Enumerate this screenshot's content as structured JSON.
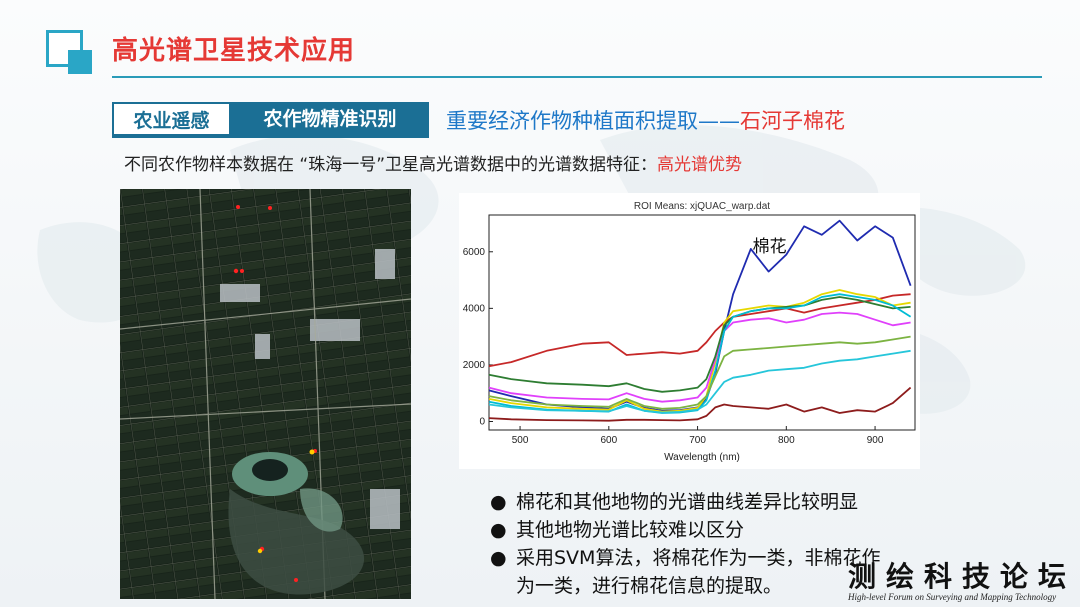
{
  "slide": {
    "title": "高光谱卫星技术应用",
    "tag_primary": "农业遥感",
    "tag_secondary": "农作物精准识别",
    "headline_main": "重要经济作物种植面积提取——",
    "headline_highlight": "石河子棉花",
    "subheading_main": "不同农作物样本数据在 “珠海一号”卫星高光谱数据中的光谱数据特征：",
    "subheading_highlight": "高光谱优势",
    "bullets": [
      "棉花和其他地物的光谱曲线差异比较明显",
      "其他地物光谱比较难以区分",
      "采用SVM算法，将棉花作为一类，非棉花作"
    ],
    "bullet_continuation": "为一类，进行棉花信息的提取。",
    "bullet_symbol": "●",
    "watermark": "测绘科技论坛",
    "watermark_sub": "High-level Forum on Surveying and Mapping Technology",
    "accent_red": "#e53935",
    "accent_blue": "#1b6f95"
  },
  "chart_data": {
    "type": "line",
    "title": "ROI Means: xjQUAC_warp.dat",
    "xlabel": "Wavelength (nm)",
    "ylabel": "",
    "annotation": "棉花",
    "xlim": [
      465,
      945
    ],
    "ylim": [
      -300,
      7300
    ],
    "x_ticks": [
      500,
      600,
      700,
      800,
      900
    ],
    "y_ticks": [
      0,
      2000,
      4000,
      6000
    ],
    "x": [
      465,
      490,
      530,
      570,
      600,
      620,
      640,
      660,
      680,
      700,
      710,
      720,
      730,
      740,
      760,
      780,
      800,
      820,
      840,
      860,
      880,
      900,
      920,
      940
    ],
    "series": [
      {
        "color": "#1f2bb0",
        "values": [
          1100,
          900,
          600,
          500,
          450,
          700,
          480,
          380,
          400,
          500,
          800,
          1700,
          3200,
          4500,
          6100,
          5300,
          5900,
          6900,
          6600,
          7100,
          6400,
          6900,
          6500,
          4800
        ]
      },
      {
        "color": "#c62828",
        "values": [
          1950,
          2100,
          2500,
          2750,
          2800,
          2350,
          2400,
          2450,
          2400,
          2500,
          2800,
          3200,
          3500,
          3700,
          3800,
          3900,
          4000,
          3850,
          4000,
          4100,
          4200,
          4300,
          4450,
          4500
        ]
      },
      {
        "color": "#e6d800",
        "values": [
          800,
          650,
          500,
          450,
          420,
          750,
          450,
          350,
          380,
          480,
          900,
          2100,
          3500,
          3900,
          4000,
          4100,
          4050,
          4200,
          4500,
          4650,
          4500,
          4400,
          4100,
          4200
        ]
      },
      {
        "color": "#e040fb",
        "values": [
          1200,
          1000,
          850,
          800,
          780,
          1000,
          800,
          700,
          750,
          850,
          1200,
          2200,
          3200,
          3500,
          3600,
          3650,
          3500,
          3600,
          3800,
          3850,
          3800,
          3600,
          3400,
          3500
        ]
      },
      {
        "color": "#2e7d32",
        "values": [
          1650,
          1500,
          1350,
          1300,
          1250,
          1350,
          1150,
          1050,
          1100,
          1200,
          1500,
          2300,
          3400,
          3700,
          3900,
          4000,
          4050,
          4100,
          4300,
          4400,
          4300,
          4150,
          4000,
          4050
        ]
      },
      {
        "color": "#00bcd4",
        "values": [
          700,
          550,
          420,
          380,
          350,
          600,
          380,
          300,
          320,
          400,
          750,
          1800,
          3200,
          3700,
          3900,
          4000,
          4000,
          4100,
          4400,
          4500,
          4400,
          4300,
          4100,
          3700
        ]
      },
      {
        "color": "#7cb342",
        "values": [
          900,
          750,
          600,
          550,
          520,
          800,
          550,
          450,
          480,
          600,
          900,
          1600,
          2300,
          2500,
          2550,
          2600,
          2650,
          2700,
          2750,
          2800,
          2750,
          2800,
          2900,
          3000
        ]
      },
      {
        "color": "#26c6da",
        "values": [
          600,
          500,
          400,
          380,
          360,
          550,
          380,
          320,
          340,
          420,
          600,
          1000,
          1400,
          1550,
          1650,
          1800,
          1850,
          1900,
          2050,
          2150,
          2200,
          2300,
          2400,
          2500
        ]
      },
      {
        "color": "#8d1c1c",
        "values": [
          120,
          80,
          50,
          40,
          30,
          60,
          60,
          50,
          40,
          80,
          200,
          500,
          600,
          550,
          500,
          450,
          600,
          350,
          500,
          300,
          400,
          350,
          650,
          1200
        ]
      }
    ]
  }
}
